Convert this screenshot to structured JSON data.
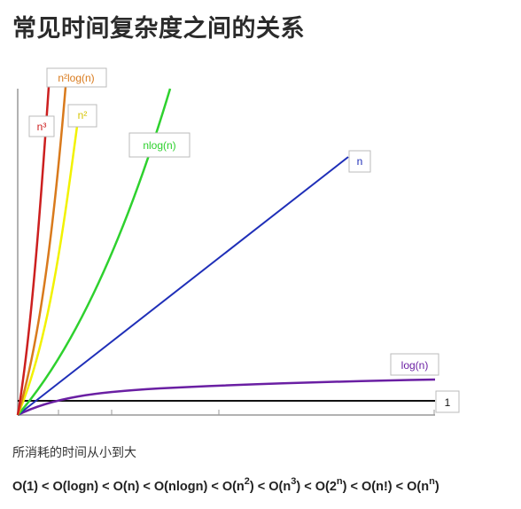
{
  "title": "常见时间复杂度之间的关系",
  "colors": {
    "one": "#111111",
    "log_n": "#6a1fa3",
    "n": "#1f2fb8",
    "n_log_n": "#2ed12e",
    "n_squared": "#f2f200",
    "n_squared_log_n": "#d97a1c",
    "n_cubed": "#cc1f1f"
  },
  "curve_labels": {
    "n_cubed": "n³",
    "n_squared_log_n": "n²log(n)",
    "n_squared": "n²",
    "n_log_n": "nlog(n)",
    "n": "n",
    "log_n": "log(n)",
    "one": "1"
  },
  "caption": "所消耗的时间从小到大",
  "order": [
    {
      "text": "O(1) < O(logn) < O(n) < O(nlogn) < O(n"
    },
    {
      "sup": "2"
    },
    {
      "text": ") < O(n"
    },
    {
      "sup": "3"
    },
    {
      "text": ") < O(2"
    },
    {
      "sup": "n"
    },
    {
      "text": ") < O(n!) < O(n"
    },
    {
      "sup": "n"
    },
    {
      "text": ")"
    }
  ]
}
